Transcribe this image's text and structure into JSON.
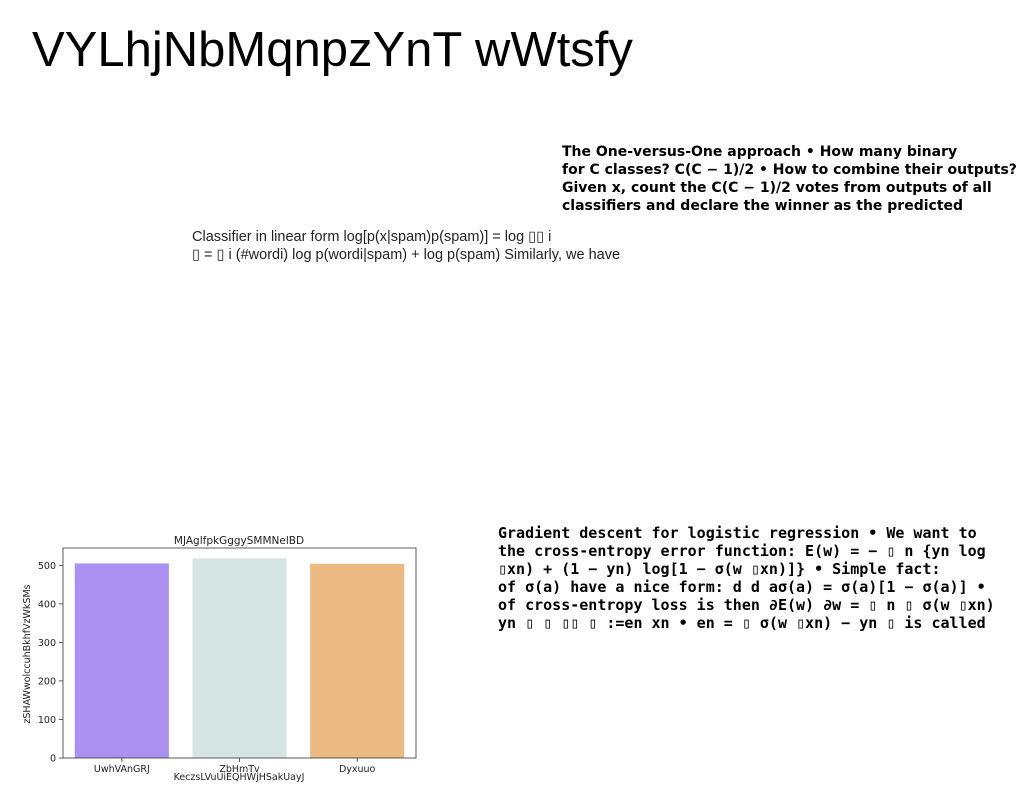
{
  "title": "VYLhjNbMqnpzYnT wWtsfy",
  "ovo_block": {
    "lines": [
      "The One-versus-One approach • How many binary",
      "for C classes? C(C − 1)/2 • How to combine their outputs?",
      "Given x, count the C(C − 1)/2 votes from outputs of all",
      "classifiers and declare the winner as the predicted"
    ]
  },
  "classifier_block": {
    "lines": [
      "Classifier in linear form log[p(x|spam)p(spam)] = log ▯▯ i",
      "▯ = ▯ i (#wordi) log p(wordi|spam) + log p(spam) Similarly, we have"
    ]
  },
  "gradient_block": {
    "lines": [
      "Gradient descent for logistic regression • We want to",
      "the cross-entropy error function: E(w) = − ▯ n {yn log",
      "▯xn) + (1 − yn) log[1 − σ(w ▯xn)]} • Simple fact:",
      "of σ(a) have a nice form: d d aσ(a) = σ(a)[1 − σ(a)] •",
      "of cross-entropy loss is then ∂E(w) ∂w = ▯ n ▯ σ(w ▯xn)",
      "yn ▯ ▯ ▯▯ ▯ :=en xn • en = ▯ σ(w ▯xn) − yn ▯ is called"
    ]
  },
  "chart_data": {
    "type": "bar",
    "title": "MJAglfpkGggySMMNelBD",
    "xlabel": "KeczsLVuUiEQHWjHSakUayJ",
    "ylabel": "zSHAWwolccuhBkhfVzWkSMs",
    "categories": [
      "UwhVAnGRJ",
      "ZbHmTv",
      "Dyxuuo"
    ],
    "values": [
      505,
      518,
      504
    ],
    "colors": [
      "#ab92f2",
      "#d6e4e2",
      "#ebb982"
    ],
    "ylim": [
      0,
      545
    ],
    "yticks": [
      0,
      100,
      200,
      300,
      400,
      500
    ],
    "grid": false
  }
}
